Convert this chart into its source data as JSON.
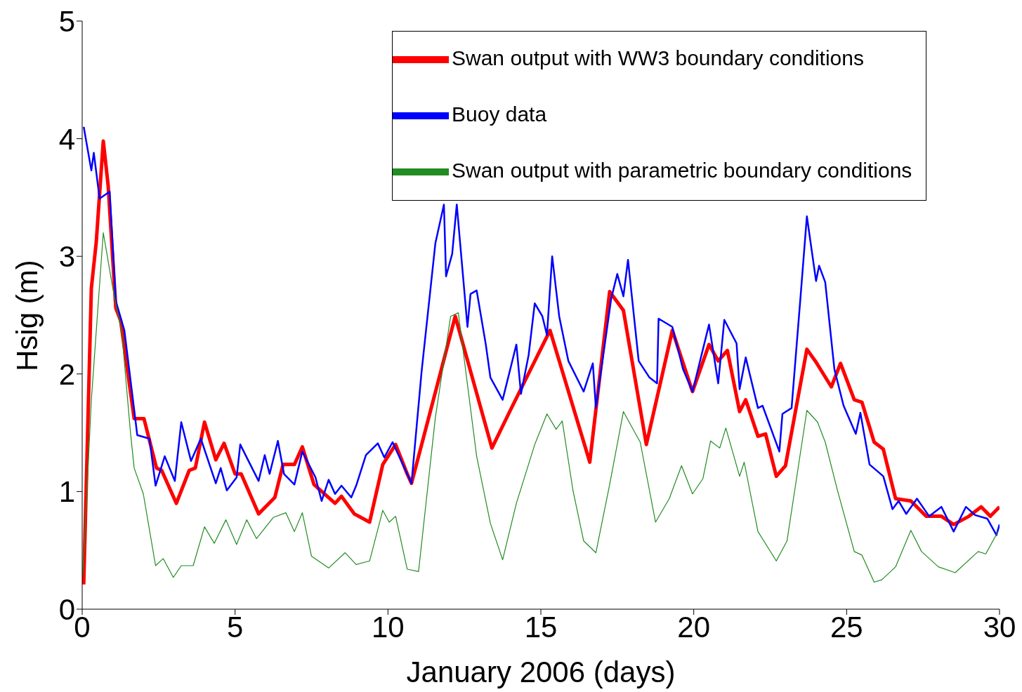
{
  "chart_data": {
    "type": "line",
    "xlabel": "January 2006 (days)",
    "ylabel": "Hsig (m)",
    "xlim": [
      0,
      30
    ],
    "xticks": [
      0,
      5,
      10,
      15,
      20,
      25,
      30
    ],
    "ylim": [
      0,
      5
    ],
    "yticks": [
      0,
      1,
      2,
      3,
      4,
      5
    ],
    "grid": false,
    "legend": "top right",
    "series": [
      {
        "name": "Swan output with WW3 boundary conditions",
        "color": "#ff0000",
        "x": [
          0.05,
          0.3,
          0.46,
          0.69,
          0.85,
          1.1,
          1.26,
          1.7,
          2.02,
          2.43,
          2.6,
          3.08,
          3.5,
          3.7,
          4.0,
          4.37,
          4.64,
          5.0,
          5.2,
          5.77,
          6.3,
          6.57,
          6.94,
          7.2,
          7.58,
          8.27,
          8.48,
          8.9,
          9.4,
          9.83,
          10.25,
          10.63,
          10.77,
          12.2,
          13.4,
          14.0,
          15.3,
          16.6,
          17.25,
          17.7,
          18.45,
          19.3,
          19.96,
          20.5,
          20.8,
          21.1,
          21.5,
          21.7,
          22.1,
          22.35,
          22.7,
          23.0,
          23.7,
          24.0,
          24.5,
          24.8,
          25.25,
          25.5,
          25.9,
          26.2,
          26.6,
          27.1,
          27.6,
          28.1,
          28.5,
          29.0,
          29.4,
          29.7,
          30.0
        ],
        "values": [
          0.21,
          2.73,
          3.12,
          3.98,
          3.6,
          2.56,
          2.45,
          1.62,
          1.62,
          1.2,
          1.18,
          0.9,
          1.18,
          1.2,
          1.59,
          1.27,
          1.41,
          1.15,
          1.15,
          0.81,
          0.95,
          1.23,
          1.23,
          1.38,
          1.06,
          0.9,
          0.96,
          0.81,
          0.74,
          1.23,
          1.4,
          1.15,
          1.07,
          2.49,
          1.37,
          1.69,
          2.37,
          1.25,
          2.7,
          2.54,
          1.4,
          2.37,
          1.85,
          2.25,
          2.11,
          2.2,
          1.68,
          1.78,
          1.47,
          1.49,
          1.13,
          1.22,
          2.21,
          2.1,
          1.89,
          2.09,
          1.78,
          1.76,
          1.42,
          1.36,
          0.94,
          0.92,
          0.79,
          0.79,
          0.72,
          0.79,
          0.87,
          0.79,
          0.87
        ]
      },
      {
        "name": "Buoy data",
        "color": "#0000ff",
        "x": [
          0.05,
          0.3,
          0.38,
          0.57,
          0.9,
          1.1,
          1.38,
          1.75,
          1.8,
          2.2,
          2.4,
          2.7,
          3.03,
          3.24,
          3.56,
          3.88,
          4.37,
          4.53,
          4.73,
          5.05,
          5.17,
          5.44,
          5.77,
          5.97,
          6.13,
          6.4,
          6.6,
          6.94,
          7.2,
          7.63,
          7.83,
          8.06,
          8.27,
          8.48,
          8.8,
          8.96,
          9.28,
          9.67,
          9.88,
          10.15,
          10.63,
          10.77,
          11.1,
          11.55,
          11.83,
          11.9,
          12.1,
          12.25,
          12.6,
          12.7,
          12.9,
          13.2,
          13.35,
          13.75,
          14.2,
          14.35,
          14.6,
          14.8,
          15.05,
          15.2,
          15.37,
          15.6,
          15.9,
          16.4,
          16.7,
          16.8,
          17.3,
          17.5,
          17.7,
          17.85,
          18.2,
          18.55,
          18.8,
          18.85,
          19.3,
          19.65,
          19.96,
          20.5,
          20.8,
          21.0,
          21.4,
          21.5,
          21.7,
          22.1,
          22.25,
          22.8,
          22.9,
          23.2,
          23.5,
          23.7,
          24.0,
          24.1,
          24.3,
          24.6,
          24.9,
          25.3,
          25.45,
          25.75,
          26.2,
          26.5,
          26.7,
          26.95,
          27.3,
          27.7,
          28.1,
          28.5,
          28.9,
          29.2,
          29.6,
          29.9,
          30.0
        ],
        "values": [
          4.1,
          3.73,
          3.88,
          3.49,
          3.55,
          2.62,
          2.37,
          1.59,
          1.48,
          1.45,
          1.05,
          1.3,
          1.09,
          1.59,
          1.26,
          1.45,
          1.07,
          1.2,
          1.01,
          1.12,
          1.4,
          1.26,
          1.09,
          1.31,
          1.15,
          1.43,
          1.15,
          1.06,
          1.34,
          1.12,
          0.92,
          1.1,
          0.98,
          1.05,
          0.95,
          1.05,
          1.31,
          1.41,
          1.29,
          1.42,
          1.15,
          1.07,
          2.02,
          3.11,
          3.44,
          2.83,
          3.02,
          3.44,
          2.4,
          2.68,
          2.71,
          2.25,
          1.97,
          1.78,
          2.25,
          1.83,
          2.16,
          2.6,
          2.49,
          2.33,
          3.0,
          2.49,
          2.11,
          1.85,
          2.09,
          1.71,
          2.64,
          2.85,
          2.66,
          2.97,
          2.11,
          1.97,
          1.92,
          2.47,
          2.4,
          2.04,
          1.85,
          2.42,
          1.92,
          2.46,
          2.26,
          1.87,
          2.14,
          1.71,
          1.73,
          1.34,
          1.66,
          1.71,
          2.68,
          3.34,
          2.79,
          2.92,
          2.78,
          2.04,
          1.73,
          1.49,
          1.67,
          1.23,
          1.13,
          0.85,
          0.92,
          0.81,
          0.94,
          0.79,
          0.87,
          0.66,
          0.87,
          0.8,
          0.77,
          0.63,
          0.72
        ]
      },
      {
        "name": "Swan output with parametric boundary conditions",
        "color": "#228b22",
        "x": [
          0.02,
          0.3,
          0.69,
          1.0,
          1.3,
          1.58,
          1.7,
          2.0,
          2.4,
          2.65,
          2.98,
          3.24,
          3.63,
          4.0,
          4.32,
          4.7,
          5.05,
          5.38,
          5.7,
          6.25,
          6.66,
          6.94,
          7.2,
          7.5,
          8.06,
          8.6,
          8.96,
          9.4,
          9.83,
          10.04,
          10.25,
          10.63,
          11.0,
          11.55,
          12.05,
          12.3,
          12.9,
          13.35,
          13.75,
          14.2,
          14.8,
          15.2,
          15.5,
          15.7,
          16.05,
          16.4,
          16.8,
          17.25,
          17.7,
          18.1,
          18.25,
          18.75,
          19.2,
          19.6,
          19.96,
          20.3,
          20.55,
          20.85,
          21.05,
          21.5,
          21.65,
          22.1,
          22.7,
          23.05,
          23.7,
          24.05,
          24.3,
          24.7,
          25.25,
          25.5,
          25.9,
          26.15,
          26.6,
          27.1,
          27.45,
          28.0,
          28.55,
          29.3,
          29.55,
          29.95
        ],
        "values": [
          0.29,
          1.78,
          3.2,
          2.73,
          2.34,
          1.5,
          1.2,
          0.98,
          0.37,
          0.43,
          0.27,
          0.37,
          0.37,
          0.7,
          0.56,
          0.76,
          0.55,
          0.76,
          0.6,
          0.78,
          0.82,
          0.66,
          0.82,
          0.45,
          0.35,
          0.48,
          0.38,
          0.41,
          0.84,
          0.74,
          0.79,
          0.34,
          0.32,
          1.63,
          2.49,
          2.52,
          1.3,
          0.73,
          0.42,
          0.9,
          1.4,
          1.66,
          1.53,
          1.6,
          1.01,
          0.58,
          0.48,
          1.06,
          1.68,
          1.49,
          1.42,
          0.74,
          0.94,
          1.22,
          0.98,
          1.11,
          1.43,
          1.37,
          1.54,
          1.13,
          1.25,
          0.66,
          0.41,
          0.58,
          1.69,
          1.59,
          1.42,
          1.01,
          0.49,
          0.46,
          0.23,
          0.25,
          0.36,
          0.67,
          0.49,
          0.36,
          0.31,
          0.49,
          0.47,
          0.66
        ]
      }
    ]
  }
}
